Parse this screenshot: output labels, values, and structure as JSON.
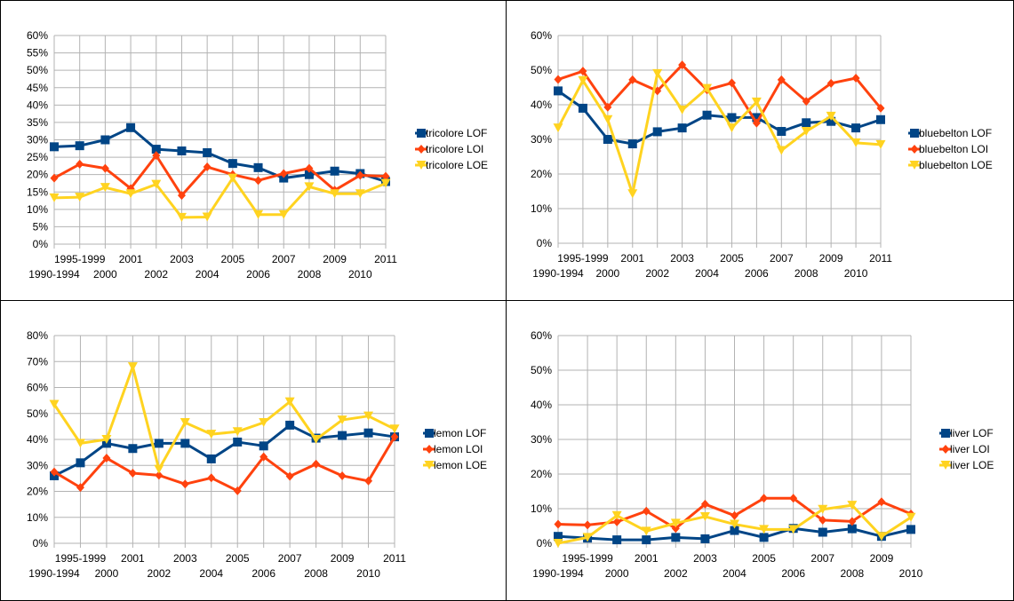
{
  "colors": {
    "LOF": "#004586",
    "LOI": "#ff420e",
    "LOE": "#ffd320",
    "grid": "#b3b3b3"
  },
  "chart_data": [
    {
      "type": "line",
      "categories": [
        "1990-1994",
        "1995-1999",
        "2000",
        "2001",
        "2002",
        "2003",
        "2004",
        "2005",
        "2006",
        "2007",
        "2008",
        "2009",
        "2010",
        "2011"
      ],
      "ylim": [
        0,
        0.6
      ],
      "yticks": [
        "0%",
        "5%",
        "10%",
        "15%",
        "20%",
        "25%",
        "30%",
        "35%",
        "40%",
        "45%",
        "50%",
        "55%",
        "60%"
      ],
      "legend_position": "right",
      "grid": true,
      "series": [
        {
          "name": "tricolore LOF",
          "key": "LOF",
          "marker": "square",
          "values": [
            0.28,
            0.283,
            0.3,
            0.335,
            0.273,
            0.268,
            0.263,
            0.232,
            0.22,
            0.19,
            0.2,
            0.21,
            0.203,
            0.18
          ]
        },
        {
          "name": "tricolore LOI",
          "key": "LOI",
          "marker": "diamond",
          "values": [
            0.19,
            0.23,
            0.218,
            0.16,
            0.255,
            0.14,
            0.222,
            0.2,
            0.183,
            0.203,
            0.218,
            0.155,
            0.198,
            0.195
          ]
        },
        {
          "name": "tricolore LOE",
          "key": "LOE",
          "marker": "triangle-down",
          "values": [
            0.133,
            0.135,
            0.163,
            0.145,
            0.172,
            0.077,
            0.078,
            0.19,
            0.085,
            0.085,
            0.165,
            0.145,
            0.145,
            0.175
          ]
        }
      ]
    },
    {
      "type": "line",
      "categories": [
        "1990-1994",
        "1995-1999",
        "2000",
        "2001",
        "2002",
        "2003",
        "2004",
        "2005",
        "2006",
        "2007",
        "2008",
        "2009",
        "2010",
        "2011"
      ],
      "ylim": [
        0,
        0.6
      ],
      "yticks": [
        "0%",
        "10%",
        "20%",
        "30%",
        "40%",
        "50%",
        "60%"
      ],
      "legend_position": "right",
      "grid": true,
      "series": [
        {
          "name": "bluebelton LOF",
          "key": "LOF",
          "marker": "square",
          "values": [
            0.44,
            0.39,
            0.3,
            0.287,
            0.322,
            0.333,
            0.37,
            0.363,
            0.363,
            0.323,
            0.348,
            0.352,
            0.333,
            0.357
          ]
        },
        {
          "name": "bluebelton LOI",
          "key": "LOI",
          "marker": "diamond",
          "values": [
            0.473,
            0.497,
            0.393,
            0.472,
            0.44,
            0.515,
            0.443,
            0.463,
            0.347,
            0.472,
            0.41,
            0.462,
            0.477,
            0.39
          ]
        },
        {
          "name": "bluebelton LOE",
          "key": "LOE",
          "marker": "triangle-down",
          "values": [
            0.333,
            0.47,
            0.357,
            0.143,
            0.49,
            0.385,
            0.447,
            0.333,
            0.408,
            0.268,
            0.323,
            0.367,
            0.29,
            0.285
          ]
        }
      ]
    },
    {
      "type": "line",
      "categories": [
        "1990-1994",
        "1995-1999",
        "2000",
        "2001",
        "2002",
        "2003",
        "2004",
        "2005",
        "2006",
        "2007",
        "2008",
        "2009",
        "2010",
        "2011"
      ],
      "ylim": [
        0,
        0.8
      ],
      "yticks": [
        "0%",
        "10%",
        "20%",
        "30%",
        "40%",
        "50%",
        "60%",
        "70%",
        "80%"
      ],
      "legend_position": "right",
      "grid": true,
      "series": [
        {
          "name": "lemon LOF",
          "key": "LOF",
          "marker": "square",
          "values": [
            0.26,
            0.31,
            0.385,
            0.365,
            0.385,
            0.385,
            0.325,
            0.39,
            0.375,
            0.455,
            0.405,
            0.415,
            0.425,
            0.41
          ]
        },
        {
          "name": "lemon LOI",
          "key": "LOI",
          "marker": "diamond",
          "values": [
            0.275,
            0.215,
            0.328,
            0.27,
            0.262,
            0.228,
            0.252,
            0.202,
            0.333,
            0.258,
            0.305,
            0.26,
            0.24,
            0.41
          ]
        },
        {
          "name": "lemon LOE",
          "key": "LOE",
          "marker": "triangle-down",
          "values": [
            0.535,
            0.385,
            0.4,
            0.68,
            0.285,
            0.465,
            0.42,
            0.43,
            0.465,
            0.545,
            0.4,
            0.475,
            0.49,
            0.44
          ]
        }
      ]
    },
    {
      "type": "line",
      "categories": [
        "1990-1994",
        "1995-1999",
        "2000",
        "2001",
        "2002",
        "2003",
        "2004",
        "2005",
        "2006",
        "2007",
        "2008",
        "2009",
        "2010"
      ],
      "ylim": [
        0,
        0.6
      ],
      "yticks": [
        "0%",
        "10%",
        "20%",
        "30%",
        "40%",
        "50%",
        "60%"
      ],
      "legend_position": "right",
      "grid": true,
      "series": [
        {
          "name": "liver LOF",
          "key": "LOF",
          "marker": "square",
          "values": [
            0.02,
            0.015,
            0.01,
            0.01,
            0.017,
            0.013,
            0.037,
            0.017,
            0.043,
            0.032,
            0.042,
            0.02,
            0.04
          ]
        },
        {
          "name": "liver LOI",
          "key": "LOI",
          "marker": "diamond",
          "values": [
            0.055,
            0.053,
            0.062,
            0.093,
            0.043,
            0.113,
            0.08,
            0.13,
            0.13,
            0.067,
            0.063,
            0.12,
            0.085
          ]
        },
        {
          "name": "liver LOE",
          "key": "LOE",
          "marker": "triangle-down",
          "values": [
            0.0,
            0.017,
            0.08,
            0.035,
            0.058,
            0.077,
            0.055,
            0.04,
            0.04,
            0.098,
            0.11,
            0.02,
            0.075
          ]
        }
      ]
    }
  ]
}
